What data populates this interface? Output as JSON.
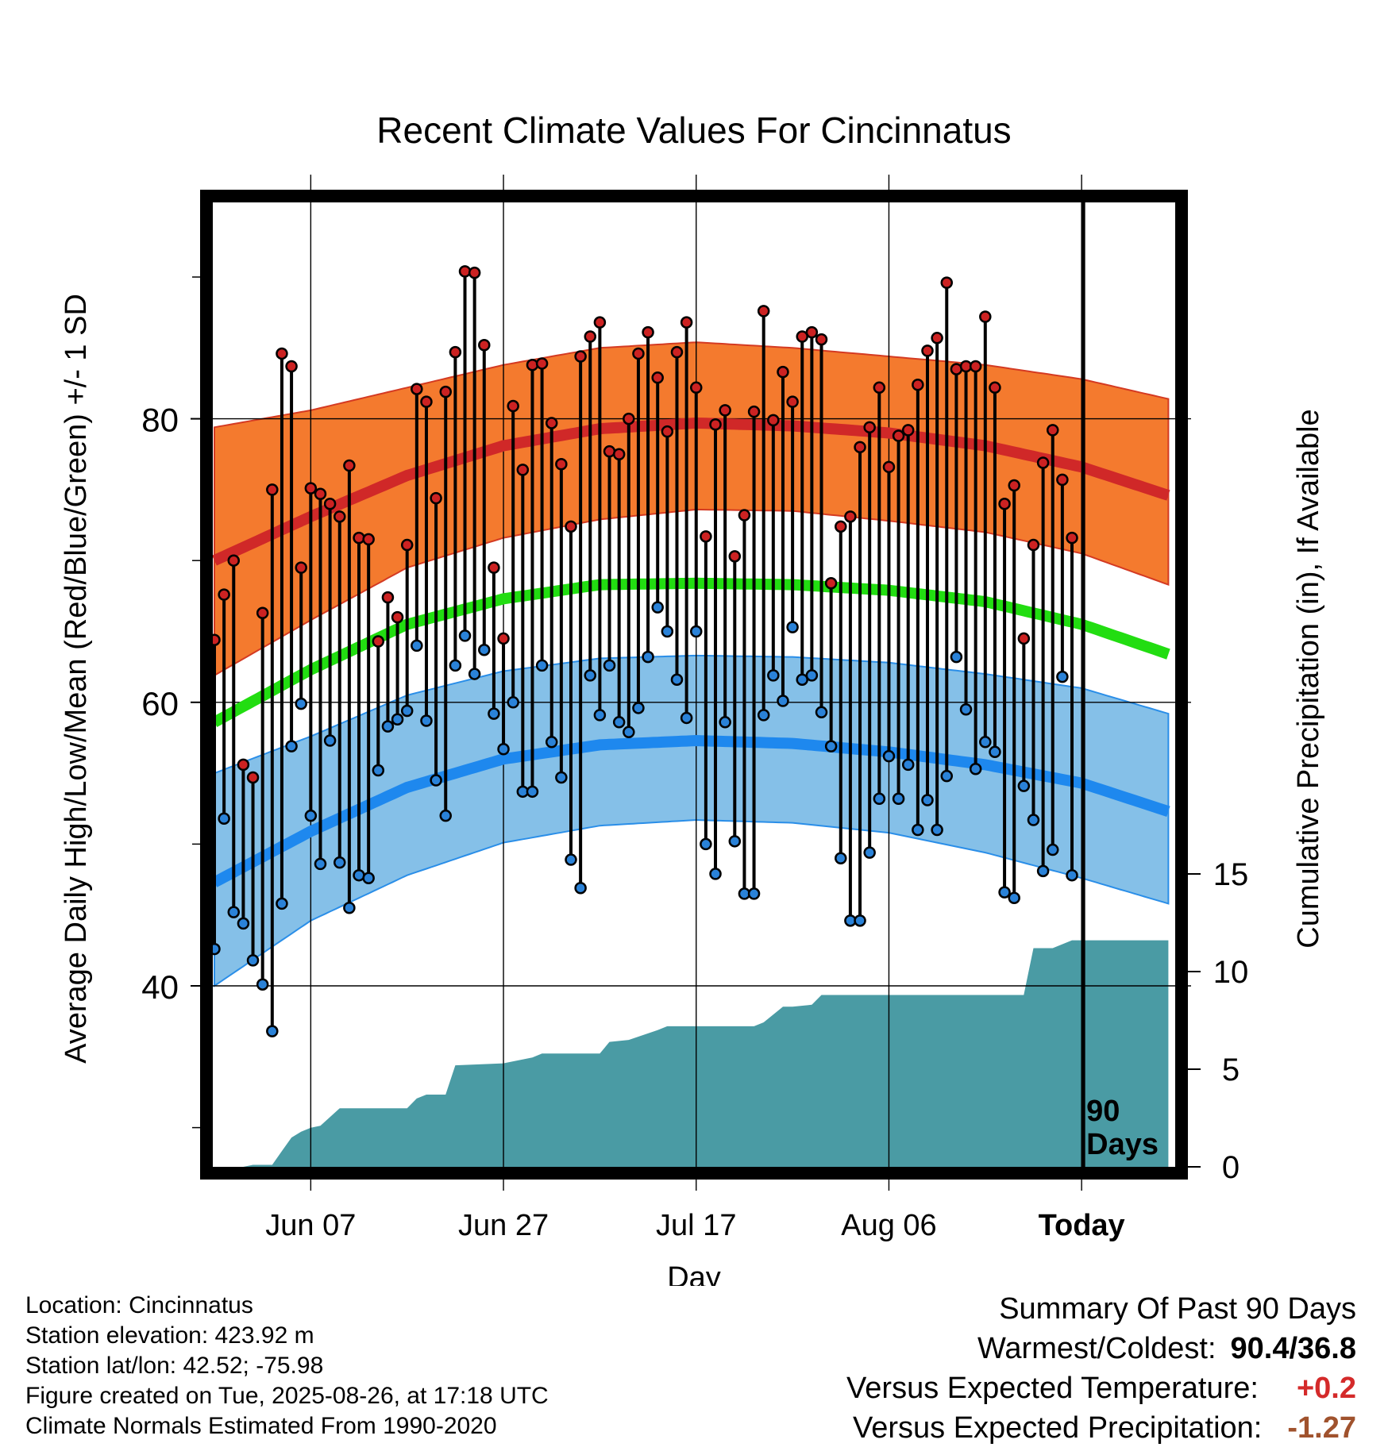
{
  "chart_data": {
    "type": "line",
    "title": "Recent Climate Values For Cincinnatus",
    "xlabel": "Day",
    "ylabel": "Average Daily High/Low/Mean (Red/Blue/Green) +/- 1 SD",
    "y2label": "Cumulative Precipitation (in), If Available",
    "x_tick_labels": [
      "Jun 07",
      "Jun 27",
      "Jul 17",
      "Aug 06",
      "Today"
    ],
    "x_tick_days": [
      10,
      30,
      50,
      70,
      90
    ],
    "x_range": [
      -1,
      99
    ],
    "ylim": [
      26,
      96
    ],
    "y_ticks": [
      40,
      60,
      80
    ],
    "y_minor_ticks": [
      30,
      50,
      70,
      90
    ],
    "y2_ticks": [
      0,
      5,
      10,
      15
    ],
    "y2_range_note": "0 at bottom",
    "today_marker_label": "90 Days",
    "normals": {
      "day": [
        0,
        10,
        20,
        30,
        40,
        50,
        60,
        70,
        80,
        90,
        99
      ],
      "high_mean": [
        70.0,
        73.1,
        76.0,
        78.1,
        79.3,
        79.7,
        79.5,
        79.0,
        78.1,
        76.6,
        74.6
      ],
      "high_upper": [
        79.4,
        80.6,
        82.2,
        83.8,
        85.0,
        85.4,
        85.0,
        84.4,
        83.8,
        82.8,
        81.4
      ],
      "high_lower": [
        61.9,
        65.8,
        69.5,
        71.6,
        72.9,
        73.6,
        73.5,
        72.8,
        72.0,
        70.5,
        68.3
      ],
      "mean": [
        58.6,
        62.3,
        65.5,
        67.3,
        68.3,
        68.4,
        68.3,
        67.9,
        67.1,
        65.5,
        63.4
      ],
      "low_mean": [
        47.3,
        50.9,
        54.0,
        56.0,
        57.0,
        57.3,
        57.1,
        56.5,
        55.6,
        54.3,
        52.3
      ],
      "low_upper": [
        55.0,
        57.6,
        60.5,
        62.2,
        63.1,
        63.3,
        63.2,
        62.8,
        62.0,
        61.0,
        59.2
      ],
      "low_lower": [
        40.0,
        44.6,
        47.8,
        50.1,
        51.3,
        51.7,
        51.5,
        50.8,
        49.4,
        47.6,
        45.8
      ]
    },
    "series": [
      {
        "name": "High",
        "values": [
          64.4,
          67.6,
          70.0,
          55.6,
          54.7,
          66.3,
          75.0,
          84.6,
          83.7,
          69.5,
          75.1,
          74.7,
          74.0,
          73.1,
          76.7,
          71.6,
          71.5,
          64.3,
          67.4,
          66.0,
          71.1,
          82.1,
          81.2,
          74.4,
          81.9,
          84.7,
          90.4,
          90.3,
          85.2,
          69.5,
          64.5,
          80.9,
          76.4,
          83.8,
          83.9,
          79.7,
          76.8,
          72.4,
          84.4,
          85.8,
          86.8,
          77.7,
          77.5,
          80.0,
          84.6,
          86.1,
          82.9,
          79.1,
          84.7,
          86.8,
          82.2,
          71.7,
          79.6,
          80.6,
          70.3,
          73.2,
          80.5,
          87.6,
          79.9,
          83.3,
          81.2,
          85.8,
          86.1,
          85.6,
          68.4,
          72.4,
          73.1,
          78.0,
          79.4,
          82.2,
          76.6,
          78.8,
          79.2,
          82.4,
          84.8,
          85.7,
          89.6,
          83.5,
          83.7,
          83.7,
          87.2,
          82.2,
          74.0,
          75.3,
          64.5,
          71.1,
          76.9,
          79.2,
          75.7,
          71.6
        ],
        "color": "#cc2222"
      },
      {
        "name": "Low",
        "values": [
          42.6,
          51.8,
          45.2,
          44.4,
          41.8,
          40.1,
          36.8,
          45.8,
          56.9,
          59.9,
          52.0,
          48.6,
          57.3,
          48.7,
          45.5,
          47.8,
          47.6,
          55.2,
          58.3,
          58.8,
          59.4,
          64.0,
          58.7,
          54.5,
          52.0,
          62.6,
          64.7,
          62.0,
          63.7,
          59.2,
          56.7,
          60.0,
          53.7,
          53.7,
          62.6,
          57.2,
          54.7,
          48.9,
          46.9,
          61.9,
          59.1,
          62.6,
          58.6,
          57.9,
          59.6,
          63.2,
          66.7,
          65.0,
          61.6,
          58.9,
          65.0,
          50.0,
          47.9,
          58.6,
          50.2,
          46.5,
          46.5,
          59.1,
          61.9,
          60.1,
          65.3,
          61.6,
          61.9,
          59.3,
          56.9,
          49.0,
          44.6,
          44.6,
          49.4,
          53.2,
          56.2,
          53.2,
          55.6,
          51.0,
          53.1,
          51.0,
          54.8,
          63.2,
          59.5,
          55.3,
          57.2,
          56.5,
          46.6,
          46.2,
          54.1,
          51.7,
          48.1,
          49.6,
          61.8,
          47.8
        ],
        "color": "#2a82d8"
      }
    ],
    "precip_cumulative": {
      "days": [
        0,
        3,
        4,
        6,
        7,
        8,
        9,
        10,
        11,
        13,
        15,
        20,
        21,
        22,
        24,
        25,
        30,
        33,
        34,
        40,
        41,
        43,
        46,
        47,
        56,
        57,
        59,
        60,
        62,
        63,
        65,
        72,
        84,
        85,
        87,
        89,
        99
      ],
      "values": [
        0.0,
        0.0,
        0.1,
        0.1,
        0.8,
        1.5,
        1.8,
        2.0,
        2.1,
        3.0,
        3.0,
        3.0,
        3.5,
        3.7,
        3.7,
        5.2,
        5.3,
        5.6,
        5.8,
        5.8,
        6.4,
        6.5,
        7.0,
        7.2,
        7.2,
        7.4,
        8.2,
        8.2,
        8.3,
        8.8,
        8.8,
        8.8,
        8.8,
        11.2,
        11.2,
        11.6,
        11.6
      ],
      "color": "#4a9ba4"
    }
  },
  "station_info": {
    "location": "Location: Cincinnatus",
    "elevation": "Station elevation: 423.92 m",
    "latlon": "Station lat/lon: 42.52; -75.98",
    "created": "Figure created on Tue, 2025-08-26, at 17:18 UTC",
    "normals": "Climate Normals Estimated From 1990-2020"
  },
  "summary": {
    "title": "Summary Of Past 90 Days",
    "warm_cold_label": "Warmest/Coldest:",
    "warm_cold_value": "90.4/36.8",
    "temp_label": "Versus Expected Temperature:",
    "temp_value": "+0.2",
    "temp_color": "#d42a2a",
    "precip_label": "Versus Expected Precipitation:",
    "precip_value": "-1.27",
    "precip_color": "#a0522d"
  }
}
